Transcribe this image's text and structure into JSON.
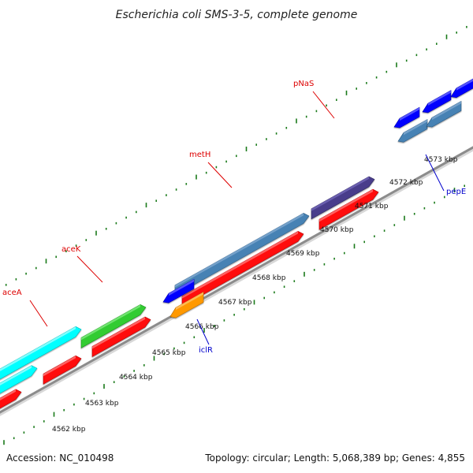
{
  "title": "Escherichia coli SMS-3-5, complete genome",
  "footer": {
    "accession": "Accession: NC_010498",
    "summary": "Topology: circular; Length: 5,068,389 bp; Genes: 4,855"
  },
  "colors": {
    "forward_cds": "#ff1111",
    "backbone": "#8c8c8c",
    "tick": "#1a7a1a",
    "label_red": "#dd0000",
    "label_blue": "#0000cc"
  },
  "scale": {
    "unit": "kbp",
    "labels": [
      "4562 kbp",
      "4563 kbp",
      "4564 kbp",
      "4565 kbp",
      "4566 kbp",
      "4567 kbp",
      "4568 kbp",
      "4569 kbp",
      "4570 kbp",
      "4571 kbp",
      "4572 kbp",
      "4573 kbp"
    ]
  },
  "genes": [
    {
      "name": "aceA",
      "strand": "+",
      "color": "cyan",
      "label_color": "red"
    },
    {
      "name": "aceK",
      "strand": "+",
      "color": "green",
      "label_color": "red"
    },
    {
      "name": "iclR",
      "strand": "-",
      "color": "orange",
      "label_color": "blue"
    },
    {
      "name": "metH",
      "strand": "+",
      "color": "steelblue",
      "label_color": "red"
    },
    {
      "name": "pNaS",
      "strand": "+",
      "color": "darkslateblue",
      "label_color": "red"
    },
    {
      "name": "pepE",
      "strand": "-",
      "color": "blue",
      "label_color": "blue"
    }
  ]
}
